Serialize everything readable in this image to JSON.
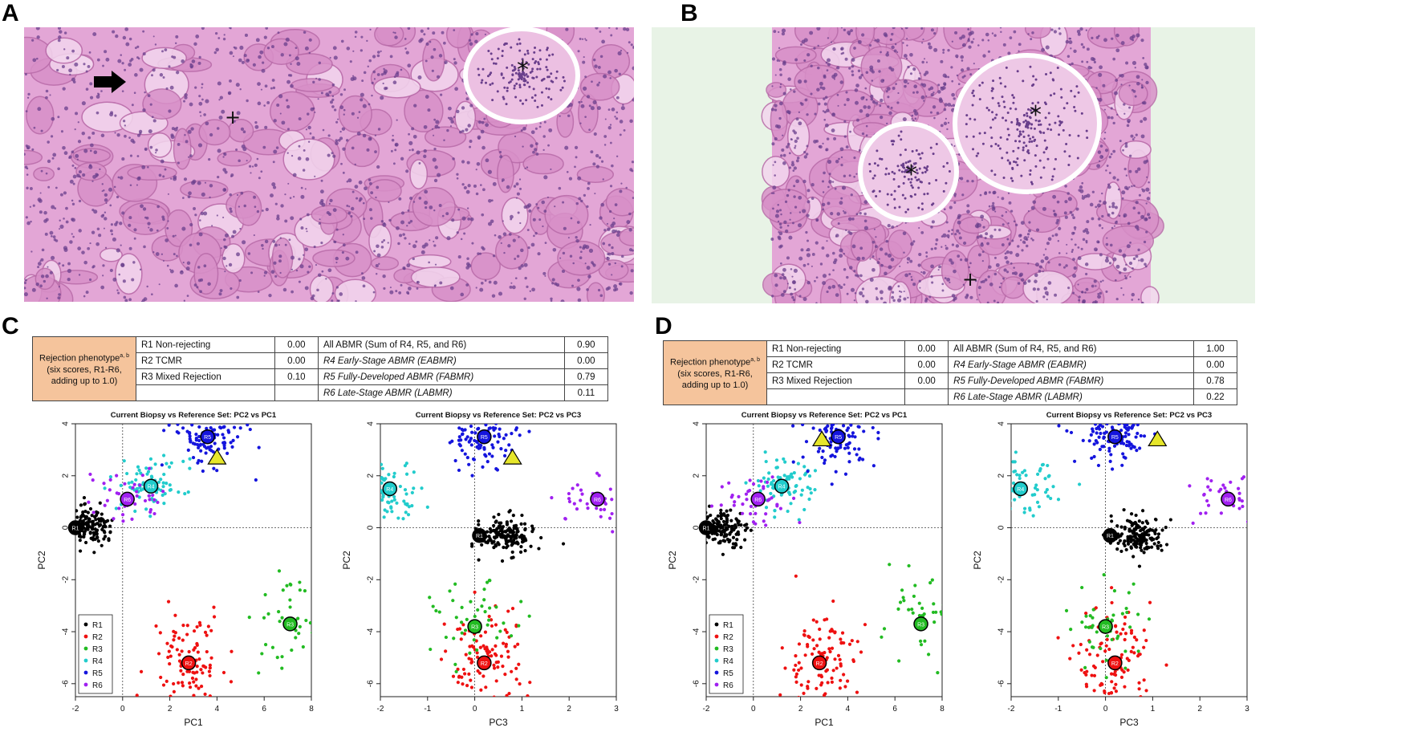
{
  "panels": {
    "a": {
      "letter": "A",
      "arrow_icon": "right-arrow-icon",
      "markers": [
        "*",
        "+"
      ]
    },
    "b": {
      "letter": "B",
      "markers": [
        "*",
        "*",
        "+"
      ]
    },
    "c": {
      "letter": "C"
    },
    "d": {
      "letter": "D"
    }
  },
  "histology_colors": {
    "stain": "#e3a6d6",
    "nuclei": "#6a3f8c",
    "background_b": "#e8f3e6"
  },
  "tables": [
    {
      "phenotype_title": "Rejection phenotype",
      "phenotype_sup": "a, b",
      "phenotype_note": [
        "(six scores, R1-R6,",
        "adding up to 1.0)"
      ],
      "left": [
        {
          "label": "R1 Non-rejecting",
          "value": "0.00"
        },
        {
          "label": "R2 TCMR",
          "value": "0.00"
        },
        {
          "label": "R3 Mixed Rejection",
          "value": "0.10"
        }
      ],
      "right": [
        {
          "label": "All ABMR (Sum of R4, R5, and R6)",
          "value": "0.90"
        },
        {
          "label": "R4 Early-Stage ABMR (EABMR)",
          "value": "0.00"
        },
        {
          "label": "R5 Fully-Developed ABMR (FABMR)",
          "value": "0.79"
        },
        {
          "label": "R6 Late-Stage ABMR (LABMR)",
          "value": "0.11"
        }
      ]
    },
    {
      "phenotype_title": "Rejection phenotype",
      "phenotype_sup": "a, b",
      "phenotype_note": [
        "(six scores, R1-R6,",
        "adding up to 1.0)"
      ],
      "left": [
        {
          "label": "R1 Non-rejecting",
          "value": "0.00"
        },
        {
          "label": "R2 TCMR",
          "value": "0.00"
        },
        {
          "label": "R3 Mixed Rejection",
          "value": "0.00"
        }
      ],
      "right": [
        {
          "label": "All ABMR (Sum of R4, R5, and R6)",
          "value": "1.00"
        },
        {
          "label": "R4 Early-Stage ABMR (EABMR)",
          "value": "0.00"
        },
        {
          "label": "R5 Fully-Developed ABMR (FABMR)",
          "value": "0.78"
        },
        {
          "label": "R6 Late-Stage ABMR (LABMR)",
          "value": "0.22"
        }
      ]
    }
  ],
  "chart_data": [
    {
      "type": "scatter",
      "panel": "C",
      "title": "Current Biopsy vs Reference Set: PC2 vs PC1",
      "xlabel": "PC1",
      "ylabel": "PC2",
      "xlim": [
        -2,
        8
      ],
      "ylim": [
        -6.5,
        4
      ],
      "xticks": [
        -2,
        0,
        2,
        4,
        6,
        8
      ],
      "yticks": [
        -6,
        -4,
        -2,
        0,
        2,
        4
      ],
      "legend": [
        "R1",
        "R2",
        "R3",
        "R4",
        "R5",
        "R6"
      ],
      "legend_position": "bottom-left",
      "centroids": [
        {
          "name": "R1",
          "x": -2.0,
          "y": 0.0
        },
        {
          "name": "R2",
          "x": 2.8,
          "y": -5.2
        },
        {
          "name": "R3",
          "x": 7.1,
          "y": -3.7
        },
        {
          "name": "R4",
          "x": 1.2,
          "y": 1.6
        },
        {
          "name": "R5",
          "x": 3.6,
          "y": 3.5
        },
        {
          "name": "R6",
          "x": 0.2,
          "y": 1.1
        }
      ],
      "current_biopsy": {
        "x": 4.0,
        "y": 2.7
      }
    },
    {
      "type": "scatter",
      "panel": "C",
      "title": "Current Biopsy vs Reference Set: PC2 vs PC3",
      "xlabel": "PC3",
      "ylabel": "PC2",
      "xlim": [
        -2,
        3
      ],
      "ylim": [
        -6.5,
        4
      ],
      "xticks": [
        -2,
        -1,
        0,
        1,
        2,
        3
      ],
      "yticks": [
        -6,
        -4,
        -2,
        0,
        2,
        4
      ],
      "centroids": [
        {
          "name": "R1",
          "x": 0.1,
          "y": -0.3
        },
        {
          "name": "R2",
          "x": 0.2,
          "y": -5.2
        },
        {
          "name": "R3",
          "x": 0.0,
          "y": -3.8
        },
        {
          "name": "R4",
          "x": -1.8,
          "y": 1.5
        },
        {
          "name": "R5",
          "x": 0.2,
          "y": 3.5
        },
        {
          "name": "R6",
          "x": 2.6,
          "y": 1.1
        }
      ],
      "current_biopsy": {
        "x": 0.8,
        "y": 2.7
      }
    },
    {
      "type": "scatter",
      "panel": "D",
      "title": "Current Biopsy vs Reference Set: PC2 vs PC1",
      "xlabel": "PC1",
      "ylabel": "PC2",
      "xlim": [
        -2,
        8
      ],
      "ylim": [
        -6.5,
        4
      ],
      "xticks": [
        -2,
        0,
        2,
        4,
        6,
        8
      ],
      "yticks": [
        -6,
        -4,
        -2,
        0,
        2,
        4
      ],
      "legend": [
        "R1",
        "R2",
        "R3",
        "R4",
        "R5",
        "R6"
      ],
      "legend_position": "bottom-left",
      "centroids": [
        {
          "name": "R1",
          "x": -2.0,
          "y": 0.0
        },
        {
          "name": "R2",
          "x": 2.8,
          "y": -5.2
        },
        {
          "name": "R3",
          "x": 7.1,
          "y": -3.7
        },
        {
          "name": "R4",
          "x": 1.2,
          "y": 1.6
        },
        {
          "name": "R5",
          "x": 3.6,
          "y": 3.5
        },
        {
          "name": "R6",
          "x": 0.2,
          "y": 1.1
        }
      ],
      "current_biopsy": {
        "x": 2.9,
        "y": 3.4
      }
    },
    {
      "type": "scatter",
      "panel": "D",
      "title": "Current Biopsy vs Reference Set: PC2 vs PC3",
      "xlabel": "PC3",
      "ylabel": "PC2",
      "xlim": [
        -2,
        3
      ],
      "ylim": [
        -6.5,
        4
      ],
      "xticks": [
        -2,
        -1,
        0,
        1,
        2,
        3
      ],
      "yticks": [
        -6,
        -4,
        -2,
        0,
        2,
        4
      ],
      "centroids": [
        {
          "name": "R1",
          "x": 0.1,
          "y": -0.3
        },
        {
          "name": "R2",
          "x": 0.2,
          "y": -5.2
        },
        {
          "name": "R3",
          "x": 0.0,
          "y": -3.8
        },
        {
          "name": "R4",
          "x": -1.8,
          "y": 1.5
        },
        {
          "name": "R5",
          "x": 0.2,
          "y": 3.5
        },
        {
          "name": "R6",
          "x": 2.6,
          "y": 1.1
        }
      ],
      "current_biopsy": {
        "x": 1.1,
        "y": 3.4
      }
    }
  ],
  "series_colors": {
    "R1": "#000000",
    "R2": "#ee1111",
    "R3": "#22bb22",
    "R4": "#22cccc",
    "R5": "#1515dd",
    "R6": "#a020f0",
    "current_biopsy": "#e6e62a"
  }
}
